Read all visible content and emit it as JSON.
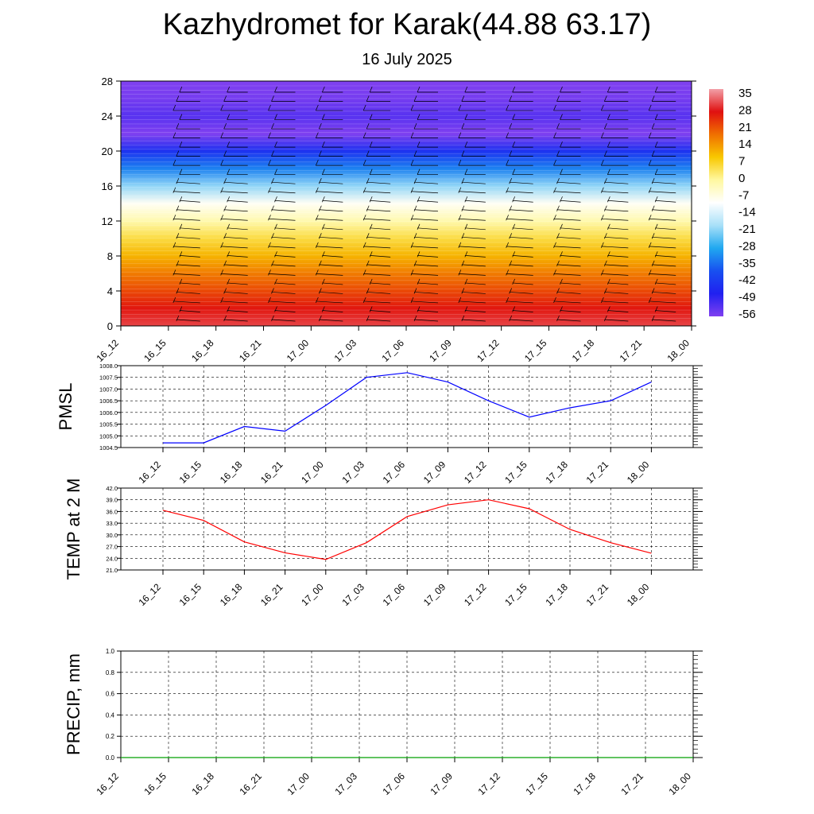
{
  "page": {
    "title": "Kazhydromet for Karak(44.88 63.17)",
    "subtitle": "16 July 2025"
  },
  "chart_data": [
    {
      "type": "heatmap",
      "ylim": [
        0,
        28
      ],
      "yticks": [
        0,
        4,
        8,
        12,
        16,
        20,
        24,
        28
      ],
      "x": [
        "16_12",
        "16_15",
        "16_18",
        "16_21",
        "17_00",
        "17_03",
        "17_06",
        "17_09",
        "17_12",
        "17_15",
        "17_18",
        "17_21",
        "18_00"
      ],
      "colorbar_labels": [
        "35",
        "28",
        "21",
        "14",
        "7",
        "0",
        "-7",
        "-14",
        "-21",
        "-28",
        "-35",
        "-42",
        "-49",
        "-56"
      ],
      "z_by_level": [
        {
          "y": 0,
          "value": 30
        },
        {
          "y": 2,
          "value": 26
        },
        {
          "y": 4,
          "value": 21
        },
        {
          "y": 6,
          "value": 16
        },
        {
          "y": 8,
          "value": 10
        },
        {
          "y": 10,
          "value": 4
        },
        {
          "y": 12,
          "value": -3
        },
        {
          "y": 14,
          "value": -10
        },
        {
          "y": 16,
          "value": -22
        },
        {
          "y": 18,
          "value": -34
        },
        {
          "y": 20,
          "value": -45
        },
        {
          "y": 22,
          "value": -58
        },
        {
          "y": 24,
          "value": -54
        },
        {
          "y": 26,
          "value": -57
        },
        {
          "y": 28,
          "value": -58
        }
      ],
      "colors": {
        "scale": [
          "#f2a0a8",
          "#e01010",
          "#f07000",
          "#f8c800",
          "#fff8a0",
          "#ffffff",
          "#a8e0f8",
          "#20a8f0",
          "#1850f0",
          "#2020f0",
          "#8040f0"
        ]
      }
    },
    {
      "type": "line",
      "ylabel": "PMSL",
      "ylim": [
        1004.5,
        1008.0
      ],
      "yticks": [
        "1004.5",
        "1005.0",
        "1005.5",
        "1006.0",
        "1006.5",
        "1007.0",
        "1007.5",
        "1008.0"
      ],
      "x": [
        "16_12",
        "16_15",
        "16_18",
        "16_21",
        "17_00",
        "17_03",
        "17_06",
        "17_09",
        "17_12",
        "17_15",
        "17_18",
        "17_21",
        "18_00"
      ],
      "series": [
        {
          "values": [
            1004.7,
            1004.7,
            1005.4,
            1005.2,
            1006.3,
            1007.5,
            1007.7,
            1007.3,
            1006.5,
            1005.8,
            1006.2,
            1006.5,
            1007.3
          ],
          "color": "#0000ff"
        }
      ]
    },
    {
      "type": "line",
      "ylabel": "TEMP at 2 M",
      "ylim": [
        21.0,
        42.0
      ],
      "yticks": [
        "21.0",
        "24.0",
        "27.0",
        "30.0",
        "33.0",
        "36.0",
        "39.0",
        "42.0"
      ],
      "x": [
        "16_12",
        "16_15",
        "16_18",
        "16_21",
        "17_00",
        "17_03",
        "17_06",
        "17_09",
        "17_12",
        "17_15",
        "17_18",
        "17_21",
        "18_00"
      ],
      "series": [
        {
          "values": [
            36.3,
            33.7,
            28.2,
            25.4,
            23.7,
            28.0,
            34.7,
            37.7,
            39.0,
            36.7,
            31.4,
            28.0,
            25.3
          ],
          "color": "#ff0000"
        }
      ]
    },
    {
      "type": "line",
      "ylabel": "PRECIP, mm",
      "ylim": [
        0.0,
        1.0
      ],
      "yticks": [
        "0.0",
        "0.2",
        "0.4",
        "0.6",
        "0.8",
        "1.0"
      ],
      "x": [
        "16_12",
        "16_15",
        "16_18",
        "16_21",
        "17_00",
        "17_03",
        "17_06",
        "17_09",
        "17_12",
        "17_15",
        "17_18",
        "17_21",
        "18_00"
      ],
      "series": [
        {
          "values": [
            0,
            0,
            0,
            0,
            0,
            0,
            0,
            0,
            0,
            0,
            0,
            0,
            0
          ],
          "color": "#00a000"
        }
      ]
    }
  ]
}
